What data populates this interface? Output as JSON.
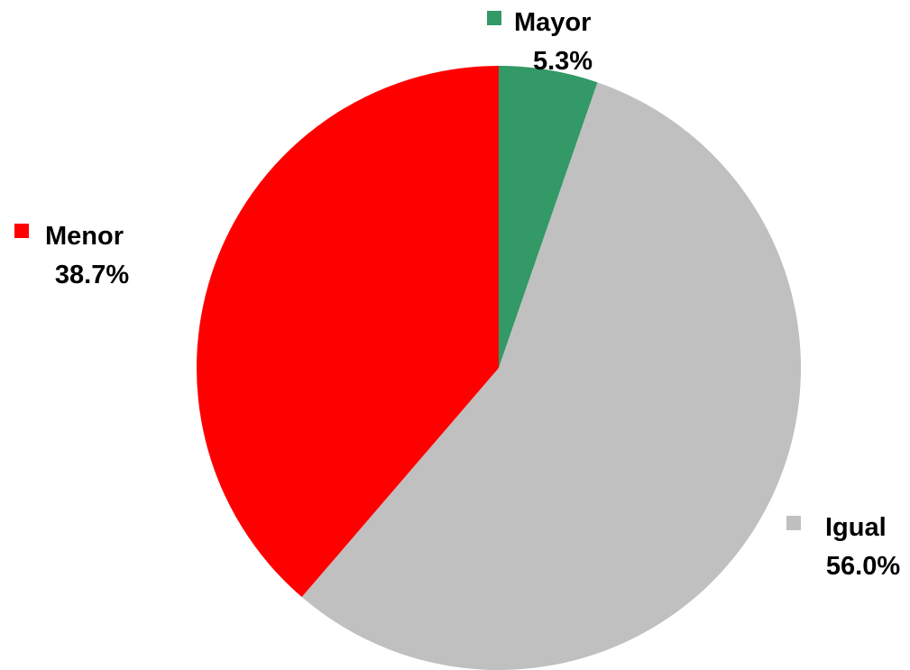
{
  "chart_data": {
    "type": "pie",
    "title": "",
    "slices": [
      {
        "name": "Mayor",
        "value": 5.3,
        "label": "5.3%",
        "color": "#339966"
      },
      {
        "name": "Igual",
        "value": 56.0,
        "label": "56.0%",
        "color": "#C0C0C0"
      },
      {
        "name": "Menor",
        "value": 38.7,
        "label": "38.7%",
        "color": "#FF0000"
      }
    ],
    "start_angle_deg": 0,
    "direction": "clockwise",
    "legend": "none",
    "data_labels": "category-name-and-percent-outside"
  }
}
